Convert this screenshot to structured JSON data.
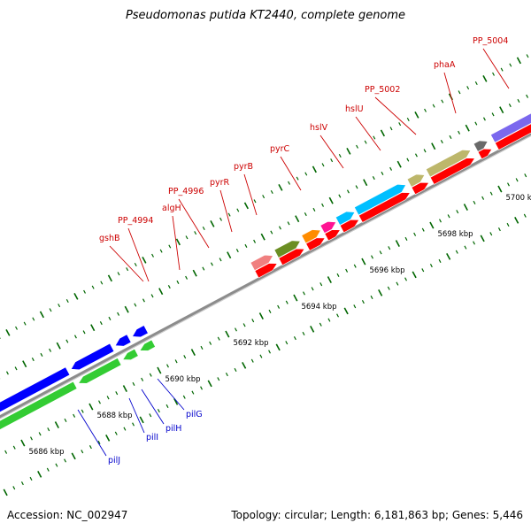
{
  "title": "Pseudomonas putida KT2440, complete genome",
  "footer": {
    "accession": "Accession: NC_002947",
    "summary": "Topology: circular; Length: 6,181,863 bp; Genes: 5,446"
  },
  "scale_unit": "kbp",
  "ticks": [
    {
      "kbp": 5686,
      "label": "5686 kbp"
    },
    {
      "kbp": 5688,
      "label": "5688 kbp"
    },
    {
      "kbp": 5690,
      "label": "5690 kbp"
    },
    {
      "kbp": 5692,
      "label": "5692 kbp"
    },
    {
      "kbp": 5694,
      "label": "5694 kbp"
    },
    {
      "kbp": 5696,
      "label": "5696 kbp"
    },
    {
      "kbp": 5698,
      "label": "5698 kbp"
    },
    {
      "kbp": 5700,
      "label": "5700 kbp"
    }
  ],
  "genes_top": [
    {
      "name": "gshB",
      "start": 5693.4,
      "end": 5694.0,
      "color": "#f08080"
    },
    {
      "name": "algH",
      "start": 5694.1,
      "end": 5694.8,
      "color": "#6b8e23"
    },
    {
      "name": "PP_4996",
      "start": 5694.9,
      "end": 5695.4,
      "color": "#ff8c00"
    },
    {
      "name": "pyrR",
      "start": 5695.45,
      "end": 5695.85,
      "color": "#ff1493"
    },
    {
      "name": "pyrB",
      "start": 5695.9,
      "end": 5696.4,
      "color": "#00bfff"
    },
    {
      "name": "pyrC",
      "start": 5696.45,
      "end": 5697.9,
      "color": "#00bfff"
    },
    {
      "name": "hslV",
      "start": 5698.0,
      "end": 5698.45,
      "color": "#bdb76b"
    },
    {
      "name": "hslU",
      "start": 5698.55,
      "end": 5699.8,
      "color": "#bdb76b"
    },
    {
      "name": "PP_5002",
      "start": 5699.95,
      "end": 5700.3,
      "color": "#696969"
    },
    {
      "name": "phaA",
      "start": 5700.45,
      "end": 5701.8,
      "color": "#7b68ee"
    },
    {
      "name": "PP_5004",
      "start": 5702.0,
      "end": 5703.0,
      "color": "#7b68ee"
    }
  ],
  "genes_top_lower": [
    {
      "name": "pilJ",
      "start": 5685.4,
      "end": 5687.9,
      "color": "#0000ff"
    },
    {
      "name": "pilI",
      "start": 5688.0,
      "end": 5689.2,
      "color": "#0000ff"
    },
    {
      "name": "pilH",
      "start": 5689.3,
      "end": 5689.7,
      "color": "#0000ff"
    },
    {
      "name": "pilG",
      "start": 5689.8,
      "end": 5690.2,
      "color": "#0000ff"
    }
  ],
  "labels_top": [
    {
      "text": "gshB",
      "kbp": 5693.45,
      "color": "#cc0000"
    },
    {
      "text": "PP_4994",
      "kbp": 5693.7,
      "color": "#cc0000"
    },
    {
      "text": "algH",
      "kbp": 5694.5,
      "color": "#cc0000"
    },
    {
      "text": "PP_4996",
      "kbp": 5695.1,
      "color": "#cc0000"
    },
    {
      "text": "pyrR",
      "kbp": 5695.65,
      "color": "#cc0000"
    },
    {
      "text": "pyrB",
      "kbp": 5696.2,
      "color": "#cc0000"
    },
    {
      "text": "pyrC",
      "kbp": 5697.2,
      "color": "#cc0000"
    },
    {
      "text": "hslV",
      "kbp": 5698.2,
      "color": "#cc0000"
    },
    {
      "text": "hslU",
      "kbp": 5699.0,
      "color": "#cc0000"
    },
    {
      "text": "PP_5002",
      "kbp": 5700.1,
      "color": "#cc0000"
    },
    {
      "text": "phaA",
      "kbp": 5701.2,
      "color": "#cc0000"
    },
    {
      "text": "PP_5004",
      "kbp": 5702.4,
      "color": "#cc0000"
    }
  ],
  "labels_bottom": [
    {
      "text": "pilJ",
      "kbp": 5686.8,
      "color": "#0000cc"
    },
    {
      "text": "pilI",
      "kbp": 5688.4,
      "color": "#0000cc"
    },
    {
      "text": "pilH",
      "kbp": 5689.2,
      "color": "#0000cc"
    },
    {
      "text": "pilG",
      "kbp": 5689.75,
      "color": "#0000cc"
    }
  ],
  "colors": {
    "backbone": "#8c8c8c",
    "forward_strand": "#ff0000",
    "reverse_strand_green": "#33cc33",
    "tick": "#006600"
  }
}
